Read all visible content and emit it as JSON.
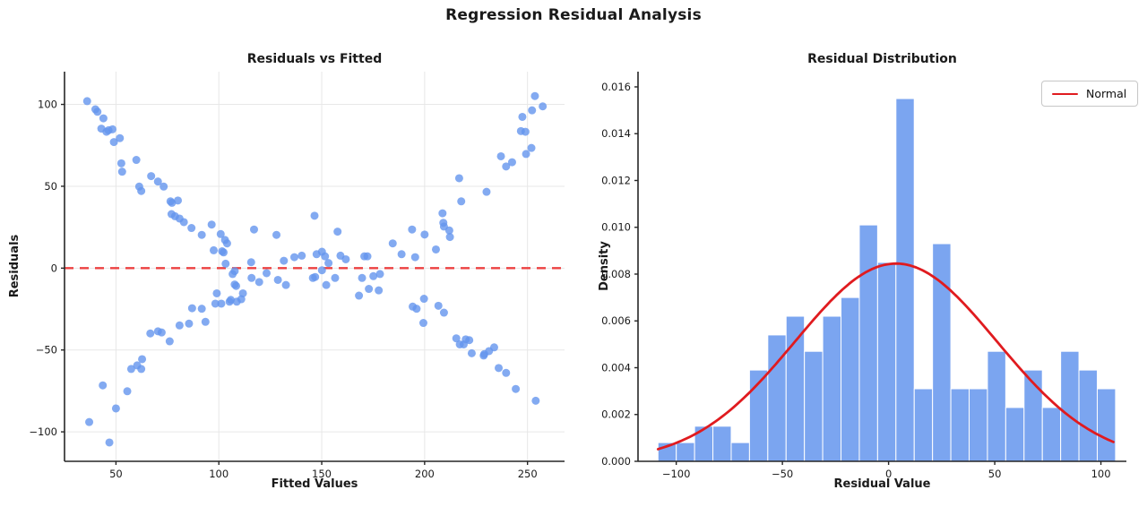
{
  "figure": {
    "title": "Regression Residual Analysis"
  },
  "colors": {
    "point": "#6495ed",
    "bar": "#6495ed",
    "bar_edge": "#ffffff",
    "normal_line": "#e01b1f",
    "zero_line": "#ec3838",
    "grid": "#e7e7e7",
    "spine": "#262626",
    "tick_text": "#1a1a1a"
  },
  "chart_data": [
    {
      "type": "scatter",
      "title": "Residuals vs Fitted",
      "xlabel": "Fitted Values",
      "ylabel": "Residuals",
      "xlim": [
        25,
        268
      ],
      "ylim": [
        -118,
        120
      ],
      "xticks": [
        50,
        100,
        150,
        200,
        250
      ],
      "yticks": [
        -100,
        -50,
        0,
        50,
        100
      ],
      "ytick_decimals": 0,
      "grid": true,
      "zero_line_y": 0,
      "points": [
        [
          36,
          102
        ],
        [
          40,
          97
        ],
        [
          41,
          95.5
        ],
        [
          43.9,
          91.5
        ],
        [
          42.9,
          85.2
        ],
        [
          45.4,
          83.3
        ],
        [
          46.4,
          84.2
        ],
        [
          48.3,
          84.8
        ],
        [
          49,
          77
        ],
        [
          51.9,
          79.4
        ],
        [
          52.6,
          64
        ],
        [
          53,
          58.9
        ],
        [
          59.9,
          66.1
        ],
        [
          61.3,
          49.8
        ],
        [
          62.3,
          47.1
        ],
        [
          67.1,
          56.2
        ],
        [
          70.4,
          52.9
        ],
        [
          73.2,
          49.8
        ],
        [
          76.5,
          40.8
        ],
        [
          77.2,
          39.9
        ],
        [
          80.1,
          41.3
        ],
        [
          77,
          33
        ],
        [
          78.7,
          31.7
        ],
        [
          80.9,
          30.3
        ],
        [
          83,
          28.1
        ],
        [
          86.7,
          24.5
        ],
        [
          91.7,
          20.3
        ],
        [
          96.5,
          26.6
        ],
        [
          100.9,
          20.8
        ],
        [
          103,
          17.2
        ],
        [
          104,
          15.1
        ],
        [
          97.5,
          10.9
        ],
        [
          101.6,
          10.3
        ],
        [
          102.3,
          9.6
        ],
        [
          103.3,
          2.7
        ],
        [
          37,
          -94
        ],
        [
          43.6,
          -71.6
        ],
        [
          46.8,
          -106.5
        ],
        [
          50,
          -85.7
        ],
        [
          55.5,
          -75.2
        ],
        [
          57.4,
          -61.6
        ],
        [
          60.3,
          -59.4
        ],
        [
          62.3,
          -61.6
        ],
        [
          62.7,
          -55.6
        ],
        [
          66.7,
          -39.9
        ],
        [
          70.4,
          -38.6
        ],
        [
          72.2,
          -39.3
        ],
        [
          76.1,
          -44.7
        ],
        [
          80.9,
          -35
        ],
        [
          85.5,
          -33.9
        ],
        [
          87,
          -24.5
        ],
        [
          91.7,
          -24.8
        ],
        [
          93.5,
          -32.8
        ],
        [
          99,
          -15.4
        ],
        [
          98.3,
          -21.7
        ],
        [
          101.2,
          -21.7
        ],
        [
          105.2,
          -20.5
        ],
        [
          105.8,
          -19.4
        ],
        [
          106.7,
          -3.6
        ],
        [
          107.7,
          -10
        ],
        [
          108.4,
          -10.9
        ],
        [
          108.7,
          -20.5
        ],
        [
          110.9,
          -19
        ],
        [
          111.7,
          -15.4
        ],
        [
          107.7,
          -1.8
        ],
        [
          115.7,
          3.6
        ],
        [
          115.9,
          -6
        ],
        [
          117.1,
          23.6
        ],
        [
          119.6,
          -8.5
        ],
        [
          123.2,
          -3.1
        ],
        [
          128,
          20.3
        ],
        [
          128.7,
          -7.2
        ],
        [
          131.6,
          4.5
        ],
        [
          132.6,
          -10.3
        ],
        [
          136.7,
          6.7
        ],
        [
          140.3,
          7.6
        ],
        [
          145.7,
          -6
        ],
        [
          146.5,
          32
        ],
        [
          146.8,
          -5.4
        ],
        [
          147.5,
          8.5
        ],
        [
          150.1,
          10
        ],
        [
          150.1,
          -1.3
        ],
        [
          151.6,
          7.2
        ],
        [
          152.2,
          -10.3
        ],
        [
          153.3,
          3.1
        ],
        [
          156.5,
          -6
        ],
        [
          157.7,
          22.3
        ],
        [
          159.1,
          7.6
        ],
        [
          161.7,
          5.4
        ],
        [
          168.1,
          -16.8
        ],
        [
          169.6,
          -6
        ],
        [
          170.7,
          7.2
        ],
        [
          172.2,
          7.2
        ],
        [
          172.9,
          -12.7
        ],
        [
          175.1,
          -4.9
        ],
        [
          177.7,
          -13.6
        ],
        [
          178.3,
          -3.6
        ],
        [
          194.2,
          -23.5
        ],
        [
          196.1,
          -24.8
        ],
        [
          199.7,
          -18.7
        ],
        [
          199.4,
          -33.5
        ],
        [
          206.7,
          -23
        ],
        [
          209.4,
          -27.2
        ],
        [
          215.4,
          -42.9
        ],
        [
          217.1,
          -46.6
        ],
        [
          219,
          -46.6
        ],
        [
          220,
          -43.5
        ],
        [
          221.7,
          -44
        ],
        [
          222.9,
          -52
        ],
        [
          228.7,
          -53.4
        ],
        [
          229,
          -52.5
        ],
        [
          231.3,
          -50.7
        ],
        [
          233.8,
          -48.4
        ],
        [
          236,
          -61
        ],
        [
          239.6,
          -64
        ],
        [
          244.3,
          -73.8
        ],
        [
          254,
          -81
        ],
        [
          184.5,
          15.1
        ],
        [
          188.8,
          8.5
        ],
        [
          193.9,
          23.6
        ],
        [
          195.4,
          6.7
        ],
        [
          200,
          20.5
        ],
        [
          205.5,
          11.4
        ],
        [
          208.7,
          33.5
        ],
        [
          209.1,
          27.7
        ],
        [
          209.4,
          25.4
        ],
        [
          212,
          23
        ],
        [
          212.3,
          19
        ],
        [
          216.8,
          54.9
        ],
        [
          217.8,
          40.8
        ],
        [
          230.1,
          46.6
        ],
        [
          237.1,
          68.3
        ],
        [
          239.6,
          62.1
        ],
        [
          242.5,
          64.7
        ],
        [
          246.8,
          83.7
        ],
        [
          247.5,
          92.4
        ],
        [
          249,
          83.3
        ],
        [
          249.3,
          69.7
        ],
        [
          251.9,
          73.4
        ],
        [
          252.2,
          96.4
        ],
        [
          253.6,
          105.1
        ],
        [
          257.4,
          98.8
        ]
      ]
    },
    {
      "type": "histogram",
      "title": "Residual Distribution",
      "xlabel": "Residual Value",
      "ylabel": "Density",
      "xlim": [
        -118,
        112
      ],
      "ylim": [
        0,
        0.01665
      ],
      "xticks": [
        -100,
        -50,
        0,
        50,
        100
      ],
      "yticks": [
        0.0,
        0.002,
        0.004,
        0.006,
        0.008,
        0.01,
        0.012,
        0.014,
        0.016
      ],
      "ytick_decimals": 3,
      "grid": false,
      "bin_start": -108.6,
      "bin_width": 8.62,
      "densities": [
        0.0008,
        0.0008,
        0.0015,
        0.0015,
        0.0008,
        0.0039,
        0.0054,
        0.0062,
        0.0047,
        0.0062,
        0.007,
        0.0101,
        0.0085,
        0.0155,
        0.0031,
        0.0093,
        0.0031,
        0.0031,
        0.0047,
        0.0023,
        0.0039,
        0.0023,
        0.0047,
        0.0039,
        0.0031
      ],
      "normal_curve": {
        "mean": 3.5,
        "sigma": 47.5,
        "peak": 0.00845
      },
      "legend": {
        "label": "Normal",
        "position": "upper right"
      }
    }
  ]
}
